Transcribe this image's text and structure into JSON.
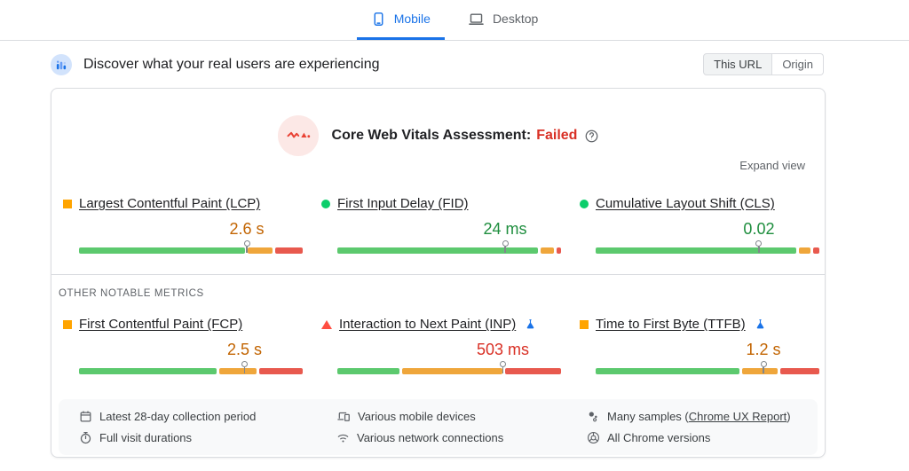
{
  "device_tabs": [
    {
      "label": "Mobile",
      "icon": "mobile-icon",
      "active": true
    },
    {
      "label": "Desktop",
      "icon": "desktop-icon",
      "active": false
    }
  ],
  "field_section": {
    "icon": "field-users-icon",
    "title": "Discover what your real users are experiencing",
    "scope_toggle": {
      "options": [
        "This URL",
        "Origin"
      ],
      "selected": "This URL"
    }
  },
  "assessment": {
    "icon": "web-vitals-pulse-icon",
    "label": "Core Web Vitals Assessment:",
    "status": "Failed",
    "help_icon": "help-icon",
    "expand_label": "Expand view"
  },
  "metrics": {
    "core": [
      {
        "name": "Largest Contentful Paint (LCP)",
        "value": "2.6 s",
        "rating": "average",
        "bullet": "square",
        "experimental": false,
        "p75_percent": 75,
        "distribution": {
          "good": 73,
          "needs_improvement": 11,
          "poor": 12
        }
      },
      {
        "name": "First Input Delay (FID)",
        "value": "24 ms",
        "rating": "good",
        "bullet": "circle",
        "experimental": false,
        "p75_percent": 75,
        "distribution": {
          "good": 92,
          "needs_improvement": 6,
          "poor": 2
        }
      },
      {
        "name": "Cumulative Layout Shift (CLS)",
        "value": "0.02",
        "rating": "good",
        "bullet": "circle",
        "experimental": false,
        "p75_percent": 73,
        "distribution": {
          "good": 92,
          "needs_improvement": 5,
          "poor": 3
        }
      }
    ],
    "other_label": "OTHER NOTABLE METRICS",
    "other": [
      {
        "name": "First Contentful Paint (FCP)",
        "value": "2.5 s",
        "rating": "average",
        "bullet": "square",
        "experimental": false,
        "p75_percent": 74,
        "distribution": {
          "good": 63,
          "needs_improvement": 17,
          "poor": 20
        }
      },
      {
        "name": "Interaction to Next Paint (INP)",
        "value": "503 ms",
        "rating": "poor",
        "bullet": "triangle",
        "experimental": true,
        "p75_percent": 74,
        "distribution": {
          "good": 28,
          "needs_improvement": 45,
          "poor": 25
        }
      },
      {
        "name": "Time to First Byte (TTFB)",
        "value": "1.2 s",
        "rating": "average",
        "bullet": "square",
        "experimental": true,
        "p75_percent": 75,
        "distribution": {
          "good": 66,
          "needs_improvement": 16,
          "poor": 18
        }
      }
    ]
  },
  "footer_items": [
    {
      "icon": "calendar-icon",
      "text": "Latest 28-day collection period"
    },
    {
      "icon": "stopwatch-icon",
      "text": "Full visit durations"
    },
    {
      "icon": "devices-icon",
      "text": "Various mobile devices"
    },
    {
      "icon": "network-icon",
      "text": "Various network connections"
    },
    {
      "icon": "samples-icon",
      "text_before": "Many samples (",
      "link": "Chrome UX Report",
      "text_after": ")"
    },
    {
      "icon": "chrome-icon",
      "text": "All Chrome versions"
    }
  ],
  "colors": {
    "accent_blue": "#1a73e8",
    "failed_red": "#d93025",
    "bar": {
      "good": "#5cc96e",
      "needs_improvement": "#efa63b",
      "poor": "#e8594e"
    },
    "value_text": {
      "good": "#1e8e3e",
      "average": "#c26401",
      "poor": "#d93025"
    },
    "bullet": {
      "good": "#0cce6b",
      "average": "#ffa400",
      "poor": "#ff4e42"
    }
  }
}
